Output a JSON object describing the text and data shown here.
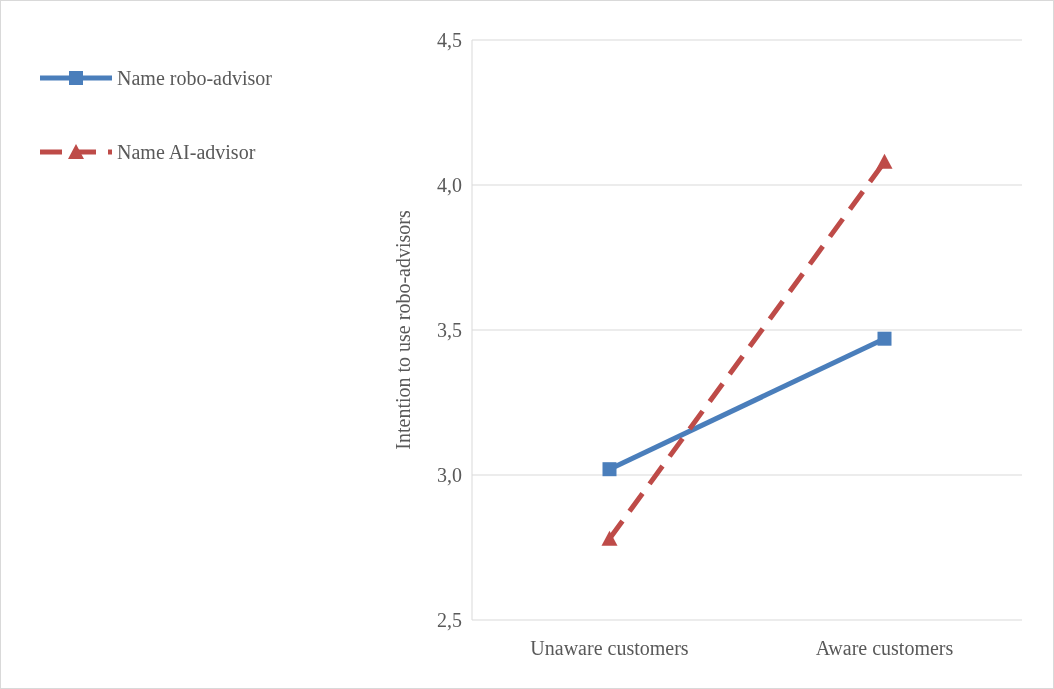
{
  "chart_data": {
    "type": "line",
    "ylabel": "Intention to use robo-advisors",
    "categories": [
      "Unaware customers",
      "Aware customers"
    ],
    "series": [
      {
        "name": "Name robo-advisor",
        "color": "#4a7ebb",
        "values": [
          3.02,
          3.47
        ],
        "marker": "square",
        "line_style": "solid"
      },
      {
        "name": "Name AI-advisor",
        "color": "#be4b48",
        "values": [
          2.78,
          4.08
        ],
        "marker": "triangle",
        "line_style": "dashed"
      }
    ],
    "ylim": [
      2.5,
      4.5
    ],
    "yticks": [
      {
        "value": 2.5,
        "label": "2,5"
      },
      {
        "value": 3,
        "label": "3,0"
      },
      {
        "value": 3.5,
        "label": "3,5"
      },
      {
        "value": 4,
        "label": "4,0"
      },
      {
        "value": 4.5,
        "label": "4,5"
      }
    ],
    "grid": "y",
    "legend": "top left"
  }
}
